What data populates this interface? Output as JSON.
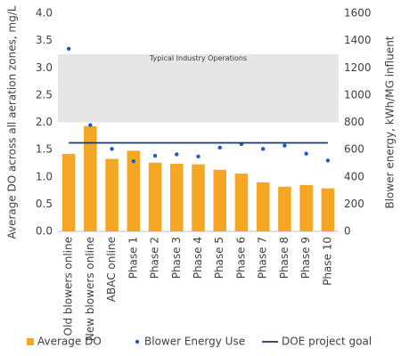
{
  "chart_data": {
    "type": "bar",
    "categories": [
      "Old blowers online",
      "New blowers online",
      "ABAC online",
      "Phase 1",
      "Phase 2",
      "Phase 3",
      "Phase 4",
      "Phase 5",
      "Phase 6",
      "Phase 7",
      "Phase 8",
      "Phase 9",
      "Phase 10"
    ],
    "series": [
      {
        "name": "Average DO",
        "type": "bar",
        "color": "#f5a623",
        "values": [
          1.42,
          1.93,
          1.33,
          1.48,
          1.26,
          1.24,
          1.23,
          1.13,
          1.06,
          0.9,
          0.82,
          0.85,
          0.79
        ]
      },
      {
        "name": "Blower Energy Use",
        "type": "scatter",
        "color": "#1f5bbf",
        "axis": "y2",
        "values": [
          1340,
          780,
          605,
          515,
          555,
          565,
          550,
          615,
          640,
          605,
          630,
          570,
          520
        ]
      },
      {
        "name": "DOE project goal",
        "type": "line",
        "color": "#1f3864",
        "axis": "y2",
        "values": [
          650,
          650,
          650,
          650,
          650,
          650,
          650,
          650,
          650,
          650,
          650,
          650,
          650
        ]
      }
    ],
    "band": {
      "label": "Typical Industry Operations",
      "range": [
        2.0,
        3.25
      ],
      "color": "#e6e6e6"
    },
    "ylabel": "Average DO across all aeration zones, mg/L",
    "y2label": "Blower energy, kWh/MG influent",
    "ylim": [
      0,
      4.0
    ],
    "yticks": [
      {
        "value": 0,
        "label": "0.0"
      },
      {
        "value": 0.5,
        "label": "0.5"
      },
      {
        "value": 1,
        "label": "1.0"
      },
      {
        "value": 1.5,
        "label": "1.5"
      },
      {
        "value": 2,
        "label": "2.0"
      },
      {
        "value": 2.5,
        "label": "2.5"
      },
      {
        "value": 3,
        "label": "3.0"
      },
      {
        "value": 3.5,
        "label": "3.5"
      },
      {
        "value": 4,
        "label": "4.0"
      }
    ],
    "y2lim": [
      0,
      1600
    ],
    "y2ticks": [
      0,
      200,
      400,
      600,
      800,
      1000,
      1200,
      1400,
      1600
    ],
    "legend": "bottom"
  }
}
